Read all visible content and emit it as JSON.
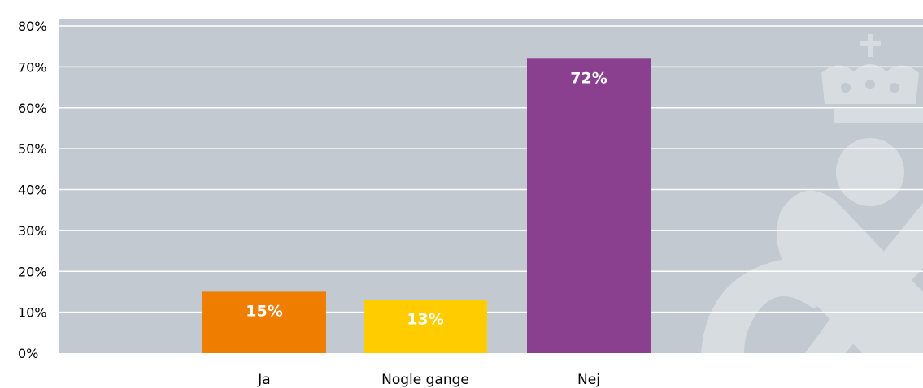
{
  "chart_data": {
    "type": "bar",
    "categories": [
      "Ja",
      "Nogle gange",
      "Nej"
    ],
    "values": [
      15,
      13,
      72
    ],
    "data_labels": [
      "15%",
      "13%",
      "72%"
    ],
    "colors": [
      "#EE7D00",
      "#FFCC00",
      "#8A3F8F"
    ],
    "ylim": [
      0,
      80
    ],
    "yticks": [
      "0%",
      "10%",
      "20%",
      "30%",
      "40%",
      "50%",
      "60%",
      "70%",
      "80%"
    ],
    "grid": true,
    "plot_background": "#C2C9D0",
    "title": "",
    "xlabel": "",
    "ylabel": ""
  }
}
